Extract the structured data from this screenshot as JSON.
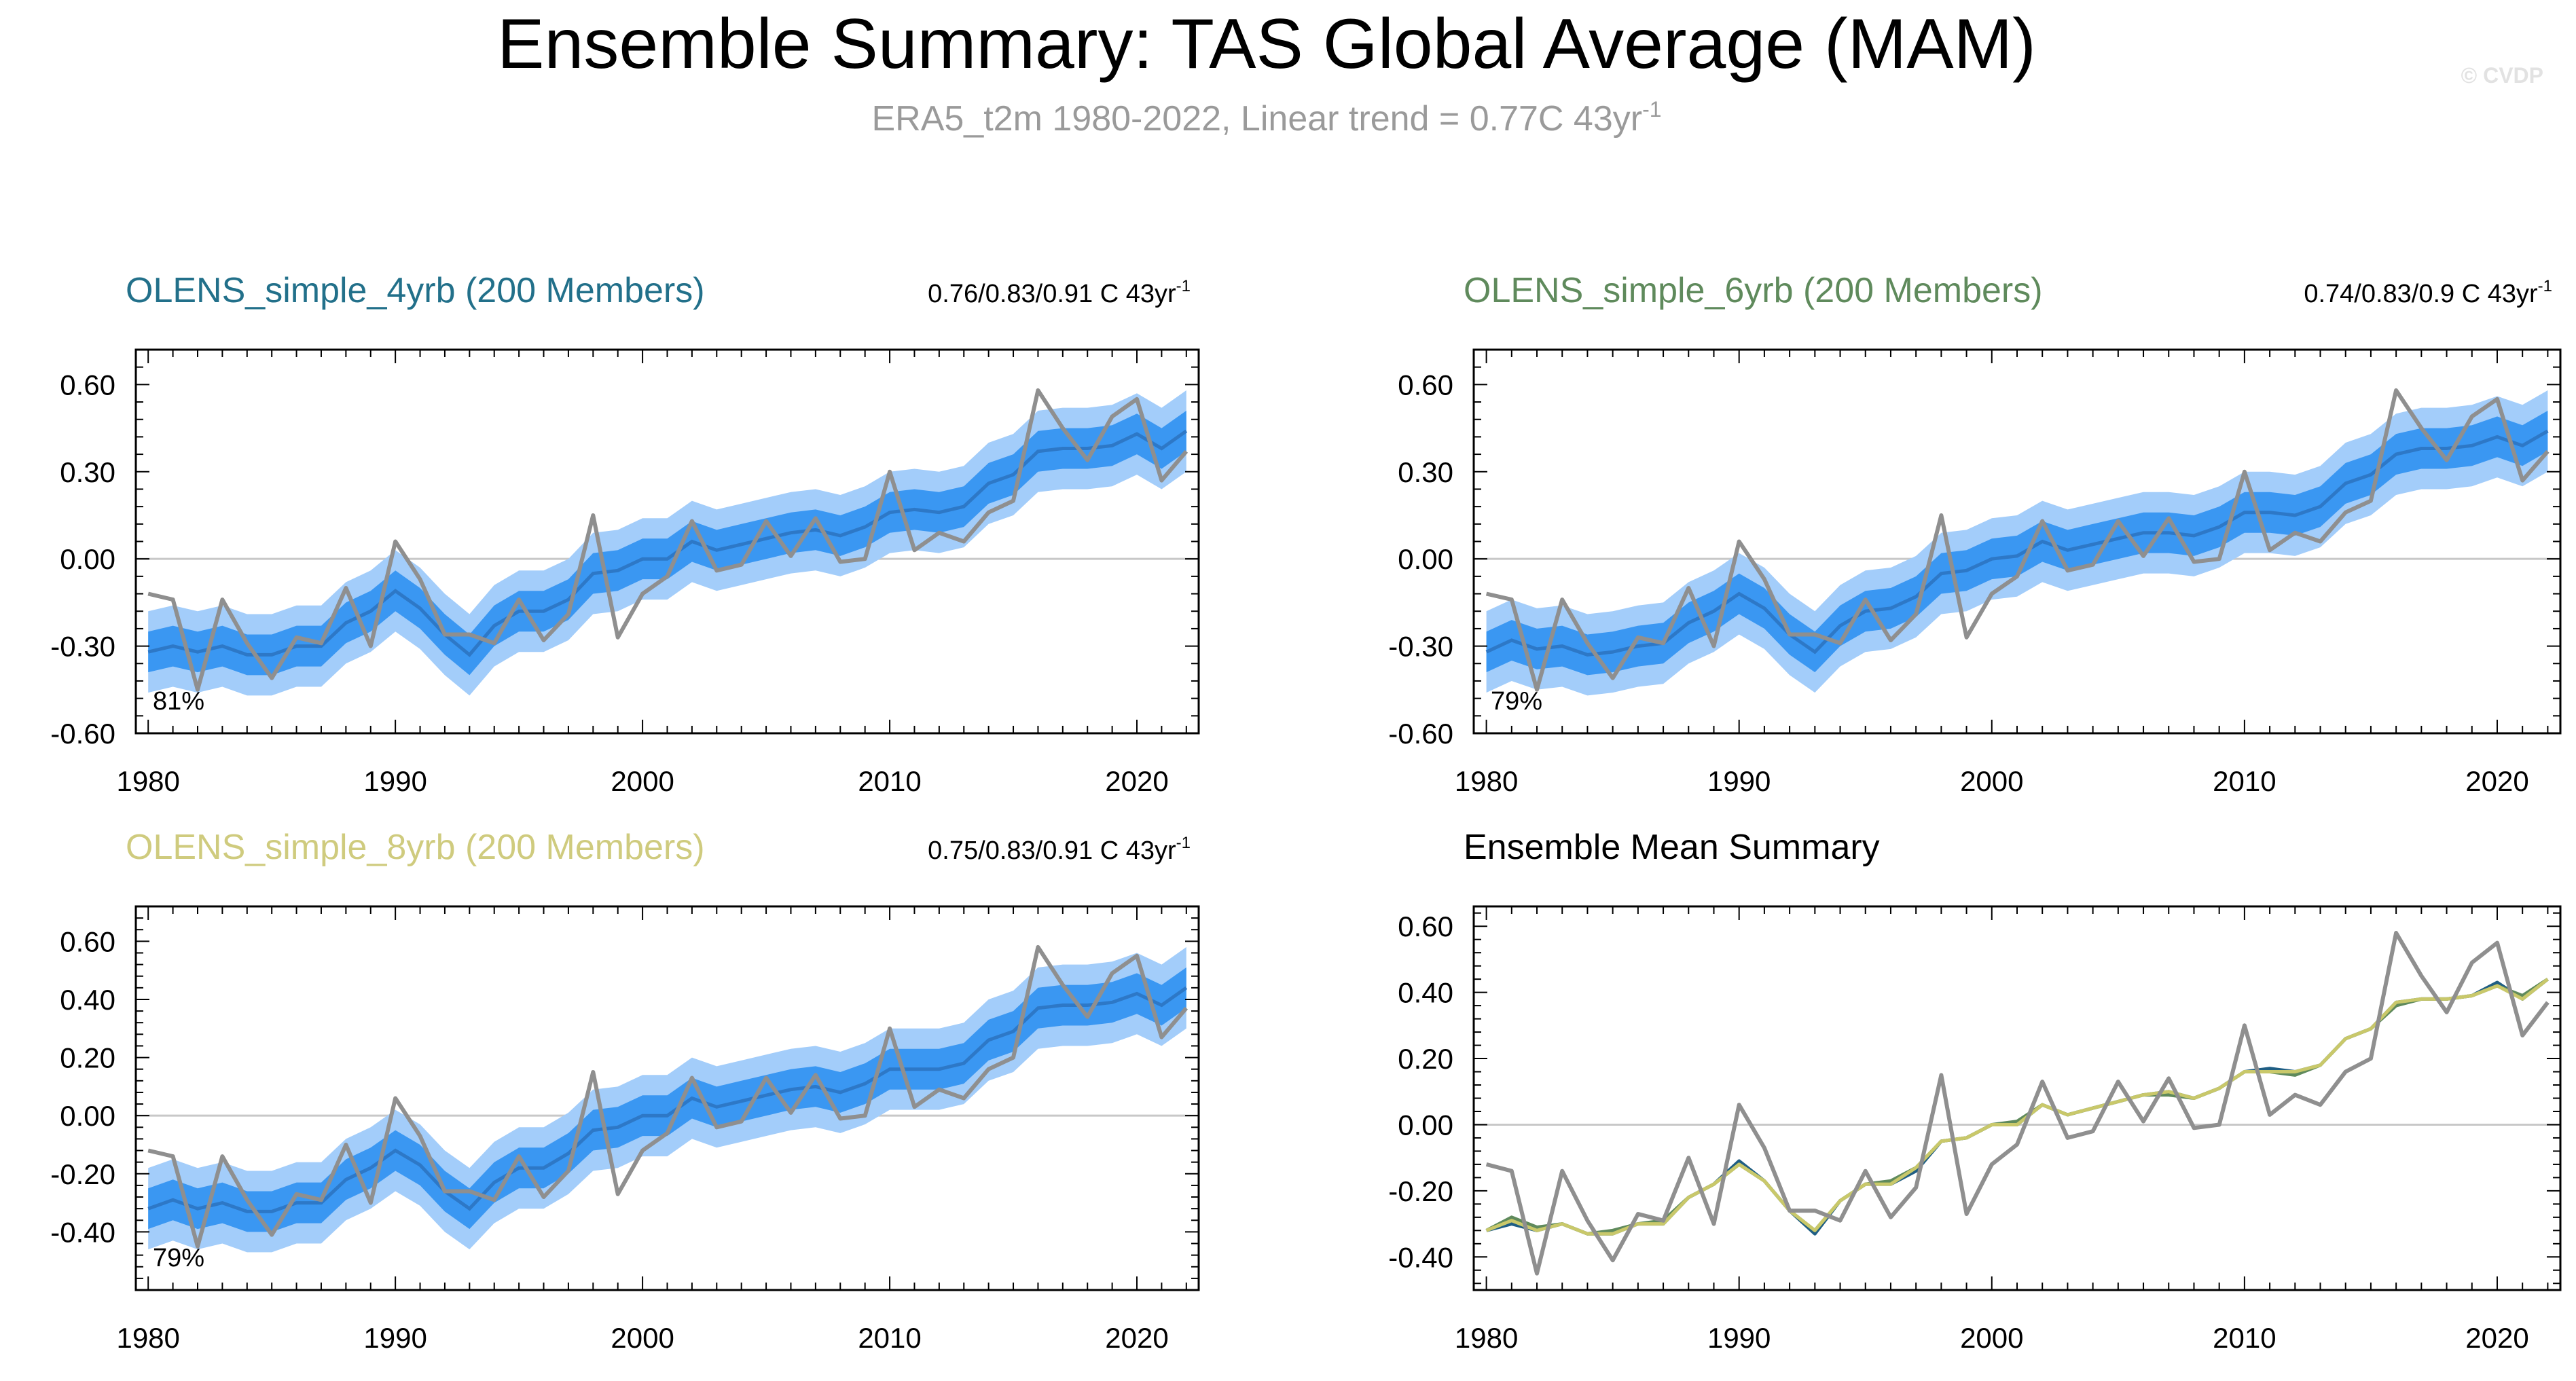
{
  "figure": {
    "title": "Ensemble Summary: TAS Global Average (MAM)",
    "subtitle_main": "ERA5_t2m 1980-2022, Linear trend = 0.77C 43yr",
    "subtitle_sup": "-1",
    "watermark": "© CVDP"
  },
  "colors": {
    "band_outer": "#a3cdfa",
    "band_inner": "#3a97f2",
    "ens_mean": "#2d78c7",
    "obs": "#8f8f8f",
    "title_4yrb": "#22708a",
    "title_6yrb": "#5f8a5c",
    "title_8yrb": "#cfcb7e",
    "zero_line": "#c8c8c8"
  },
  "years": [
    1980,
    1981,
    1982,
    1983,
    1984,
    1985,
    1986,
    1987,
    1988,
    1989,
    1990,
    1991,
    1992,
    1993,
    1994,
    1995,
    1996,
    1997,
    1998,
    1999,
    2000,
    2001,
    2002,
    2003,
    2004,
    2005,
    2006,
    2007,
    2008,
    2009,
    2010,
    2011,
    2012,
    2013,
    2014,
    2015,
    2016,
    2017,
    2018,
    2019,
    2020,
    2021,
    2022
  ],
  "observations": {
    "name": "ERA5_t2m",
    "values": [
      -0.12,
      -0.14,
      -0.45,
      -0.14,
      -0.29,
      -0.41,
      -0.27,
      -0.29,
      -0.1,
      -0.3,
      0.06,
      -0.07,
      -0.26,
      -0.26,
      -0.29,
      -0.14,
      -0.28,
      -0.19,
      0.15,
      -0.27,
      -0.12,
      -0.06,
      0.13,
      -0.04,
      -0.02,
      0.13,
      0.01,
      0.14,
      -0.01,
      0.0,
      0.3,
      0.03,
      0.09,
      0.06,
      0.16,
      0.2,
      0.58,
      0.45,
      0.34,
      0.49,
      0.55,
      0.27,
      0.37
    ]
  },
  "chart_data": [
    {
      "type": "area",
      "title": "OLENS_simple_4yrb (200 Members)",
      "trend_label": "0.76/0.83/0.91 C 43yr",
      "trend_sup": "-1",
      "percent_label": "81%",
      "xlim": [
        1979.5,
        2022.5
      ],
      "ylim": [
        -0.6,
        0.72
      ],
      "x_ticks": [
        1980,
        1990,
        2000,
        2010,
        2020
      ],
      "y_ticks": [
        -0.6,
        -0.3,
        0.0,
        0.3,
        0.6
      ],
      "y_tick_labels": [
        "-0.60",
        "-0.30",
        "0.00",
        "0.30",
        "0.60"
      ],
      "series": [
        {
          "name": "ensemble_mean",
          "values": [
            -0.32,
            -0.3,
            -0.32,
            -0.3,
            -0.33,
            -0.33,
            -0.3,
            -0.3,
            -0.22,
            -0.18,
            -0.11,
            -0.17,
            -0.26,
            -0.33,
            -0.23,
            -0.18,
            -0.18,
            -0.14,
            -0.05,
            -0.04,
            0.0,
            0.0,
            0.06,
            0.03,
            0.05,
            0.07,
            0.09,
            0.1,
            0.08,
            0.11,
            0.16,
            0.17,
            0.16,
            0.18,
            0.26,
            0.29,
            0.37,
            0.38,
            0.38,
            0.39,
            0.43,
            0.38,
            0.44
          ]
        },
        {
          "name": "spread_inner",
          "offset": 0.07
        },
        {
          "name": "spread_outer",
          "offset": 0.14
        }
      ]
    },
    {
      "type": "area",
      "title": "OLENS_simple_6yrb (200 Members)",
      "trend_label": "0.74/0.83/0.9 C 43yr",
      "trend_sup": "-1",
      "percent_label": "79%",
      "xlim": [
        1979.5,
        2022.5
      ],
      "ylim": [
        -0.6,
        0.72
      ],
      "x_ticks": [
        1980,
        1990,
        2000,
        2010,
        2020
      ],
      "y_ticks": [
        -0.6,
        -0.3,
        0.0,
        0.3,
        0.6
      ],
      "y_tick_labels": [
        "-0.60",
        "-0.30",
        "0.00",
        "0.30",
        "0.60"
      ],
      "series": [
        {
          "name": "ensemble_mean",
          "values": [
            -0.32,
            -0.28,
            -0.31,
            -0.3,
            -0.33,
            -0.32,
            -0.3,
            -0.29,
            -0.22,
            -0.18,
            -0.12,
            -0.17,
            -0.26,
            -0.32,
            -0.23,
            -0.18,
            -0.17,
            -0.13,
            -0.05,
            -0.04,
            0.0,
            0.01,
            0.06,
            0.03,
            0.05,
            0.07,
            0.09,
            0.09,
            0.08,
            0.11,
            0.16,
            0.16,
            0.15,
            0.18,
            0.26,
            0.29,
            0.36,
            0.38,
            0.38,
            0.39,
            0.42,
            0.39,
            0.44
          ]
        },
        {
          "name": "spread_inner",
          "offset": 0.07
        },
        {
          "name": "spread_outer",
          "offset": 0.14
        }
      ]
    },
    {
      "type": "area",
      "title": "OLENS_simple_8yrb (200 Members)",
      "trend_label": "0.75/0.83/0.91 C 43yr",
      "trend_sup": "-1",
      "percent_label": "79%",
      "xlim": [
        1979.5,
        2022.5
      ],
      "ylim": [
        -0.6,
        0.72
      ],
      "x_ticks": [
        1980,
        1990,
        2000,
        2010,
        2020
      ],
      "y_ticks": [
        -0.4,
        -0.2,
        0.0,
        0.2,
        0.4,
        0.6
      ],
      "y_tick_labels": [
        "-0.40",
        "-0.20",
        "0.00",
        "0.20",
        "0.40",
        "0.60"
      ],
      "series": [
        {
          "name": "ensemble_mean",
          "values": [
            -0.32,
            -0.29,
            -0.32,
            -0.3,
            -0.33,
            -0.33,
            -0.3,
            -0.3,
            -0.22,
            -0.18,
            -0.12,
            -0.17,
            -0.26,
            -0.32,
            -0.23,
            -0.18,
            -0.18,
            -0.13,
            -0.05,
            -0.04,
            0.0,
            0.0,
            0.06,
            0.03,
            0.05,
            0.07,
            0.09,
            0.1,
            0.08,
            0.11,
            0.16,
            0.16,
            0.16,
            0.18,
            0.26,
            0.29,
            0.37,
            0.38,
            0.38,
            0.39,
            0.42,
            0.38,
            0.44
          ]
        },
        {
          "name": "spread_inner",
          "offset": 0.07
        },
        {
          "name": "spread_outer",
          "offset": 0.14
        }
      ]
    },
    {
      "type": "line",
      "title": "Ensemble Mean Summary",
      "xlim": [
        1979.5,
        2022.5
      ],
      "ylim": [
        -0.5,
        0.66
      ],
      "x_ticks": [
        1980,
        1990,
        2000,
        2010,
        2020
      ],
      "y_ticks": [
        -0.4,
        -0.2,
        0.0,
        0.2,
        0.4,
        0.6
      ],
      "y_tick_labels": [
        "-0.40",
        "-0.20",
        "0.00",
        "0.20",
        "0.40",
        "0.60"
      ],
      "series": [
        {
          "name": "OLENS_simple_4yrb",
          "ref": 0
        },
        {
          "name": "OLENS_simple_6yrb",
          "ref": 1
        },
        {
          "name": "OLENS_simple_8yrb",
          "ref": 2
        },
        {
          "name": "ERA5_t2m",
          "ref": "observations"
        }
      ]
    }
  ]
}
